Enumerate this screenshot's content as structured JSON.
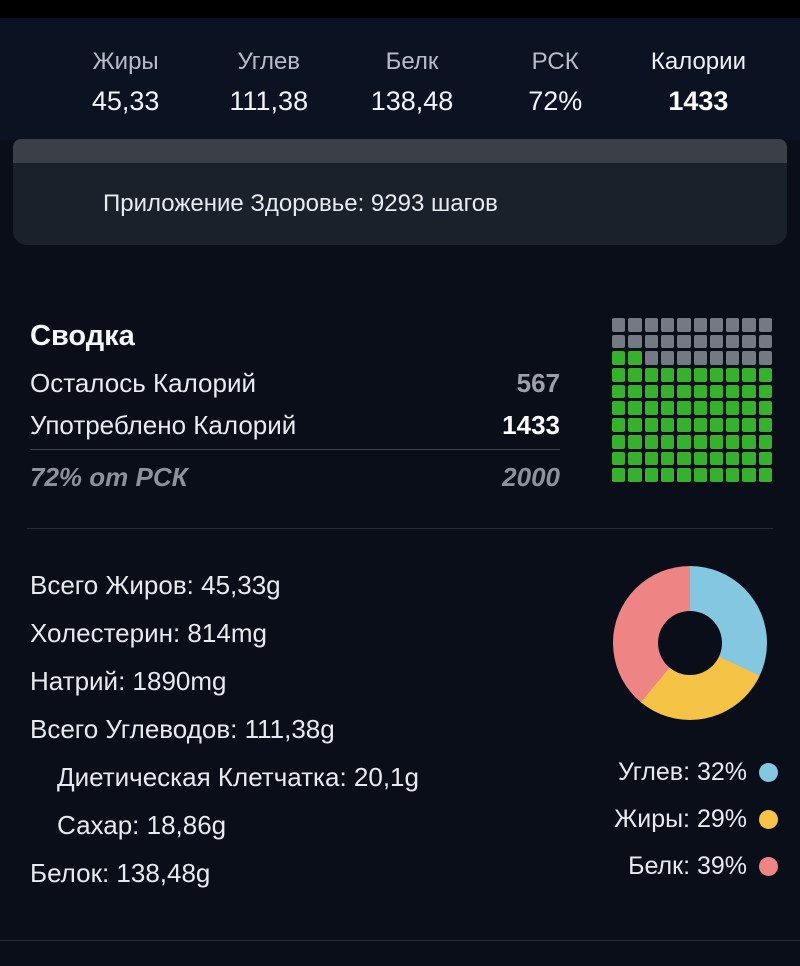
{
  "header": {
    "stats": [
      {
        "label": "Жиры",
        "value": "45,33",
        "emphasis": false
      },
      {
        "label": "Углев",
        "value": "111,38",
        "emphasis": false
      },
      {
        "label": "Белк",
        "value": "138,48",
        "emphasis": false
      },
      {
        "label": "РСК",
        "value": "72%",
        "emphasis": false
      },
      {
        "label": "Калории",
        "value": "1433",
        "emphasis": true
      }
    ]
  },
  "health_banner": {
    "text": "Приложение Здоровье: 9293 шагов"
  },
  "summary": {
    "title": "Сводка",
    "rows": [
      {
        "label": "Осталось Калорий",
        "value": "567"
      },
      {
        "label": "Употреблено Калорий",
        "value": "1433"
      }
    ],
    "footer": {
      "label": "72% от РСК",
      "value": "2000"
    },
    "progress_grid": {
      "rows": 10,
      "cols": 10,
      "total_cells": 100,
      "filled_cells": 72,
      "filled_color": "#36b12c",
      "empty_color": "#747a84",
      "fill_direction": "bottom-up, left-to-right"
    }
  },
  "nutrients": [
    {
      "label": "Всего Жиров",
      "value": "45,33g",
      "indent": false
    },
    {
      "label": "Холестерин",
      "value": "814mg",
      "indent": false
    },
    {
      "label": "Натрий",
      "value": "1890mg",
      "indent": false
    },
    {
      "label": "Всего Углеводов",
      "value": "111,38g",
      "indent": false
    },
    {
      "label": "Диетическая Клетчатка",
      "value": "20,1g",
      "indent": true
    },
    {
      "label": "Сахар",
      "value": "18,86g",
      "indent": true
    },
    {
      "label": "Белок",
      "value": "138,48g",
      "indent": false
    }
  ],
  "chart_data": {
    "type": "pie",
    "subtype": "donut",
    "title": "",
    "start_angle_deg": 0,
    "direction": "clockwise",
    "legend_position": "bottom-right",
    "series": [
      {
        "name": "Углев",
        "value_pct": 32,
        "color": "#83c7e1"
      },
      {
        "name": "Жиры",
        "value_pct": 29,
        "color": "#f4c345"
      },
      {
        "name": "Белк",
        "value_pct": 39,
        "color": "#ef8484"
      }
    ]
  },
  "colors": {
    "page_bg": "#090e18",
    "header_bg": "#0b1322",
    "status_bar": "#000000",
    "card_strip": "#3a3f48",
    "card_body": "#1b212b",
    "divider": "#262c37",
    "accent_green": "#36b12c"
  }
}
